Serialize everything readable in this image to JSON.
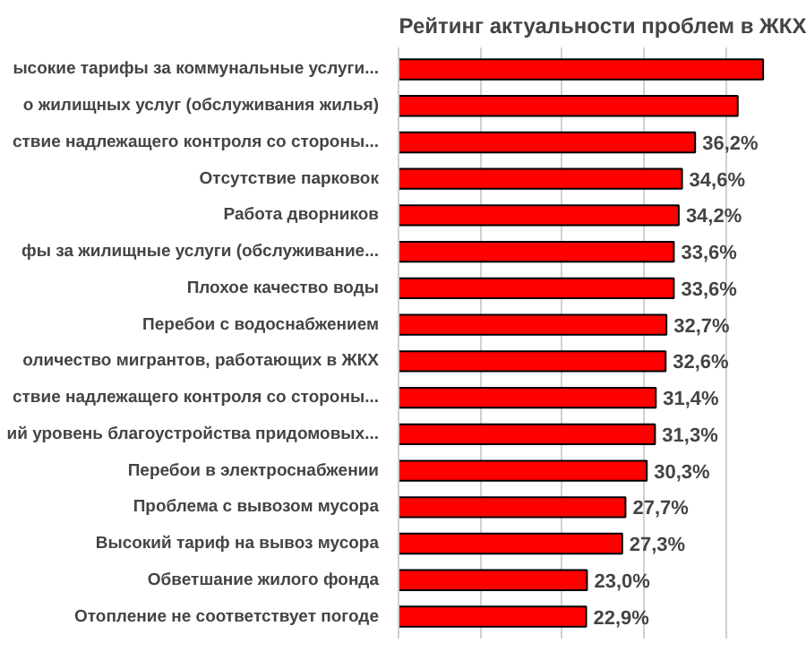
{
  "chart_data": {
    "type": "bar",
    "orientation": "horizontal",
    "title": "Рейтинг актуальности проблем в ЖКХ",
    "categories": [
      "ысокие тарифы за коммунальные услуги...",
      "о жилищных услуг (обслуживания жилья)",
      "ствие надлежащего контроля со стороны...",
      "Отсутствие парковок",
      "Работа дворников",
      "фы за жилищные услуги (обслуживание...",
      "Плохое качество воды",
      "Перебои с водоснабжением",
      "оличество мигрантов, работающих в ЖКХ",
      "ствие надлежащего контроля со стороны...",
      "ий уровень благоустройства придомовых...",
      "Перебои в электроснабжении",
      "Проблема с вывозом мусора",
      "Высокий тариф на вывоз мусора",
      "Обветшание жилого фонда",
      "Отопление не соответствует погоде"
    ],
    "values": [
      44.5,
      41.4,
      36.2,
      34.6,
      34.2,
      33.6,
      33.6,
      32.7,
      32.6,
      31.4,
      31.3,
      30.3,
      27.7,
      27.3,
      23.0,
      22.9
    ],
    "value_labels": [
      null,
      null,
      "36,2%",
      "34,6%",
      "34,2%",
      "33,6%",
      "33,6%",
      "32,7%",
      "32,6%",
      "31,4%",
      "31,3%",
      "30,3%",
      "27,7%",
      "27,3%",
      "23,0%",
      "22,9%"
    ],
    "color": "#ff0000",
    "xticks": [
      {
        "value": 0,
        "label": null
      },
      {
        "value": 10,
        "label": null
      },
      {
        "value": 20,
        "label": null
      },
      {
        "value": 30,
        "label": null
      },
      {
        "value": 40,
        "label": null
      }
    ],
    "grid": "x",
    "tick_labels": false
  }
}
